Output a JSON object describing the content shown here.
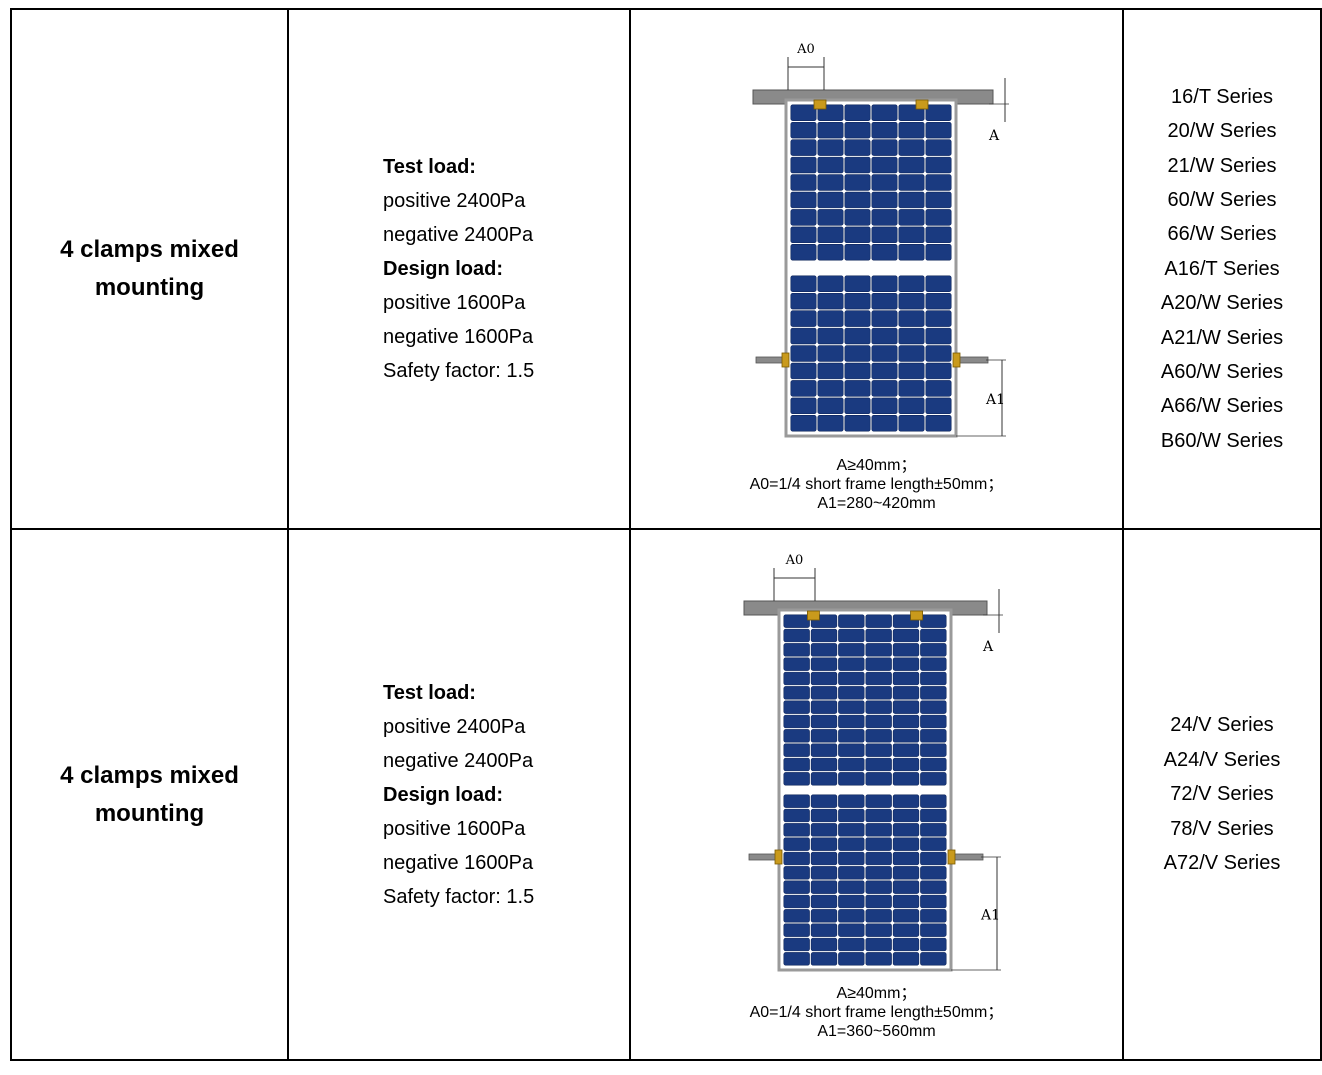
{
  "rows": [
    {
      "method": "4 clamps mixed mounting",
      "loads": {
        "test_label": "Test load:",
        "test_positive": "positive 2400Pa",
        "test_negative": "negative 2400Pa",
        "design_label": "Design load:",
        "design_positive": "positive 1600Pa",
        "design_negative": "negative 1600Pa",
        "safety": "Safety factor: 1.5"
      },
      "diagram": {
        "label_a0": "A0",
        "label_a": "A",
        "label_a1": "A1",
        "dim_line1": "A≥40mm；",
        "dim_line2": "A0=1/4 short frame length±50mm；",
        "dim_line3": "A1=280~420mm"
      },
      "series": [
        "16/T Series",
        "20/W Series",
        "21/W Series",
        "60/W Series",
        "66/W Series",
        "A16/T Series",
        "A20/W Series",
        "A21/W Series",
        "A60/W Series",
        "A66/W Series",
        "B60/W Series"
      ]
    },
    {
      "method": "4 clamps mixed mounting",
      "loads": {
        "test_label": "Test load:",
        "test_positive": "positive 2400Pa",
        "test_negative": "negative 2400Pa",
        "design_label": "Design load:",
        "design_positive": "positive 1600Pa",
        "design_negative": "negative 1600Pa",
        "safety": "Safety factor: 1.5"
      },
      "diagram": {
        "label_a0": "A0",
        "label_a": "A",
        "label_a1": "A1",
        "dim_line1": "A≥40mm；",
        "dim_line2": "A0=1/4 short frame length±50mm；",
        "dim_line3": "A1=360~560mm"
      },
      "series": [
        "24/V Series",
        "A24/V Series",
        "72/V Series",
        "78/V Series",
        "A72/V Series"
      ]
    }
  ],
  "colors": {
    "panel_cell": "#1a3a80",
    "panel_frame": "#9a9a9a",
    "rail": "#8a8a8a",
    "clamp": "#c99a1c"
  }
}
